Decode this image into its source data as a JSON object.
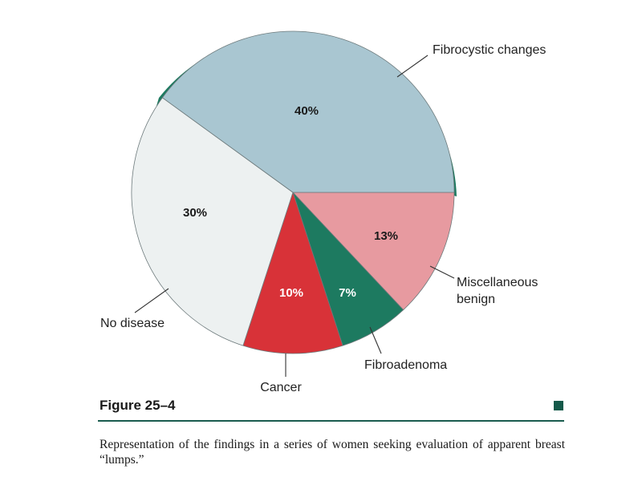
{
  "chart_data": {
    "type": "pie",
    "title": "",
    "slices": [
      {
        "label": "Fibrocystic changes",
        "value": 40,
        "value_label": "40%",
        "color": "#a9c6d1",
        "pct_color": "#1a1a1a"
      },
      {
        "label": "Miscellaneous benign",
        "value": 13,
        "value_label": "13%",
        "color": "#e79aa0",
        "pct_color": "#1a1a1a"
      },
      {
        "label": "Fibroadenoma",
        "value": 7,
        "value_label": "7%",
        "color": "#1d7a60",
        "pct_color": "#ffffff"
      },
      {
        "label": "Cancer",
        "value": 10,
        "value_label": "10%",
        "color": "#d83238",
        "pct_color": "#ffffff"
      },
      {
        "label": "No disease",
        "value": 30,
        "value_label": "30%",
        "color": "#edf1f1",
        "pct_color": "#1a1a1a"
      }
    ],
    "rim_color": "#1d7a60"
  },
  "figure": {
    "label": "Figure 25–4",
    "caption": "Representation of the findings in a series of women seeking evaluation of apparent breast “lumps.”",
    "accent_color": "#14594a"
  }
}
